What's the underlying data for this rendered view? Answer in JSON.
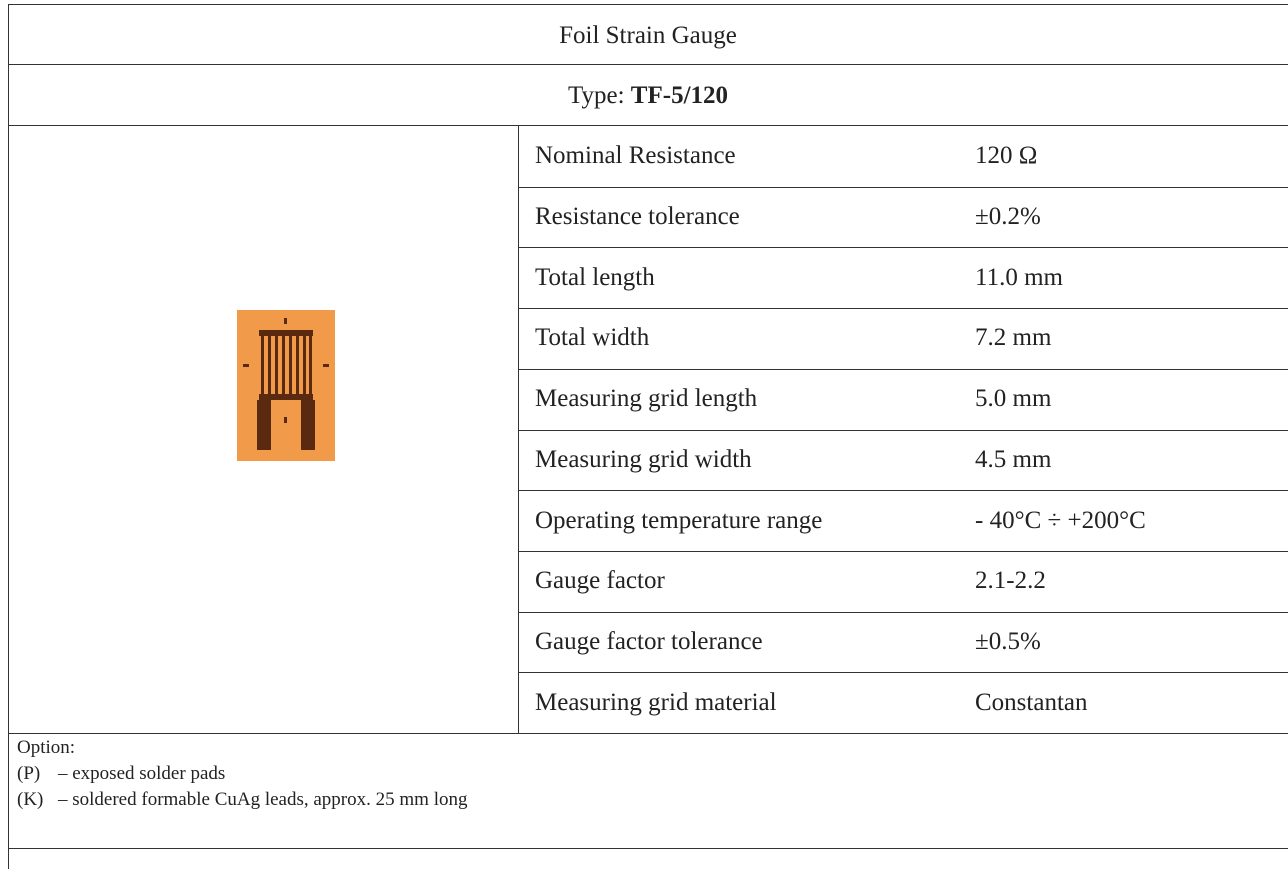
{
  "header": {
    "title": "Foil Strain Gauge",
    "type_label": "Type:",
    "type_value": "TF-5/120"
  },
  "specs": [
    [
      "Nominal Resistance",
      "120 Ω"
    ],
    [
      "Resistance tolerance",
      "±0.2%"
    ],
    [
      "Total length",
      "11.0 mm"
    ],
    [
      "Total width",
      "7.2 mm"
    ],
    [
      "Measuring grid length",
      "5.0 mm"
    ],
    [
      "Measuring grid width",
      "4.5 mm"
    ],
    [
      "Operating temperature range",
      "- 40°C ÷ +200°C"
    ],
    [
      "Gauge factor",
      "2.1-2.2"
    ],
    [
      "Gauge factor tolerance",
      "±0.5%"
    ],
    [
      "Measuring grid material",
      "Constantan"
    ]
  ],
  "options": {
    "title": "Option:",
    "items": [
      {
        "code": "(P)",
        "text": "– exposed solder pads"
      },
      {
        "code": "(K)",
        "text": "– soldered formable CuAg leads, approx. 25 mm long"
      }
    ]
  }
}
